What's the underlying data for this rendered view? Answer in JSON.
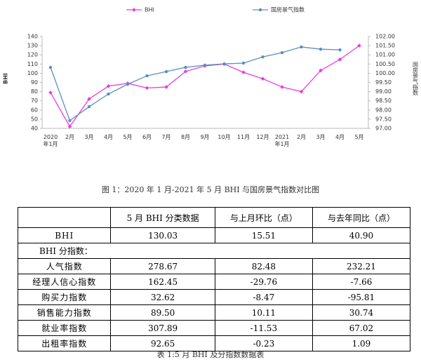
{
  "chart_data": {
    "type": "line",
    "categories": [
      "2020\n年1月",
      "2月",
      "3月",
      "4月",
      "5月",
      "6月",
      "7月",
      "8月",
      "9月",
      "10月",
      "11月",
      "12月",
      "2021\n年1月",
      "2月",
      "3月",
      "4月",
      "5月"
    ],
    "series": [
      {
        "name": "BHI",
        "color": "#e83ee0",
        "values": [
          79,
          42,
          72,
          86,
          89,
          84,
          85,
          102,
          108,
          110,
          101,
          94,
          85,
          80,
          103,
          115,
          130
        ]
      },
      {
        "name": "国房景气指数",
        "color": "#5b8fc0",
        "axis": "y2",
        "values": [
          100.32,
          97.42,
          98.18,
          98.87,
          99.4,
          99.86,
          100.09,
          100.32,
          100.44,
          100.51,
          100.55,
          100.89,
          101.12,
          101.43,
          101.31,
          101.27,
          null
        ]
      }
    ],
    "ylabel": "BHI",
    "y2label": "国房景气指数",
    "ylim": [
      40,
      140
    ],
    "yticks": [
      40,
      50,
      60,
      70,
      80,
      90,
      100,
      110,
      120,
      130,
      140
    ],
    "y2lim": [
      97,
      102
    ],
    "y2ticks": [
      {
        "value": 97,
        "label": "97.00"
      },
      {
        "value": 97.5,
        "label": "97.50"
      },
      {
        "value": 98,
        "label": "98.00"
      },
      {
        "value": 98.5,
        "label": "98.50"
      },
      {
        "value": 99,
        "label": "99.00"
      },
      {
        "value": 99.5,
        "label": "99.50"
      },
      {
        "value": 100,
        "label": "100.00"
      },
      {
        "value": 100.5,
        "label": "100.50"
      },
      {
        "value": 101,
        "label": "101.00"
      },
      {
        "value": 101.5,
        "label": "101.50"
      },
      {
        "value": 102,
        "label": "102.00"
      }
    ],
    "legend": "top",
    "grid": false
  },
  "figure_caption": "图 1：2020 年 1 月-2021 年 5 月 BHI 与国房景气指数对比图",
  "table": {
    "header": [
      "5 月 BHI 分类数据",
      "与上月环比（点）",
      "与去年同比（点）"
    ],
    "rows": [
      [
        "BHI",
        "130.03",
        "15.51",
        "40.90"
      ],
      [
        "BHI 分指数："
      ],
      [
        "人气指数",
        "278.67",
        "82.48",
        "232.21"
      ],
      [
        "经理人信心指数",
        "162.45",
        "-29.76",
        "-7.66"
      ],
      [
        "购买力指数",
        "32.62",
        "-8.47",
        "-95.81"
      ],
      [
        "销售能力指数",
        "89.50",
        "10.11",
        "30.74"
      ],
      [
        "就业率指数",
        "307.89",
        "-11.53",
        "67.02"
      ],
      [
        "出租率指数",
        "92.65",
        "-0.23",
        "1.09"
      ]
    ],
    "caption": "表 1:5 月 BHI 及分指数数据表"
  }
}
